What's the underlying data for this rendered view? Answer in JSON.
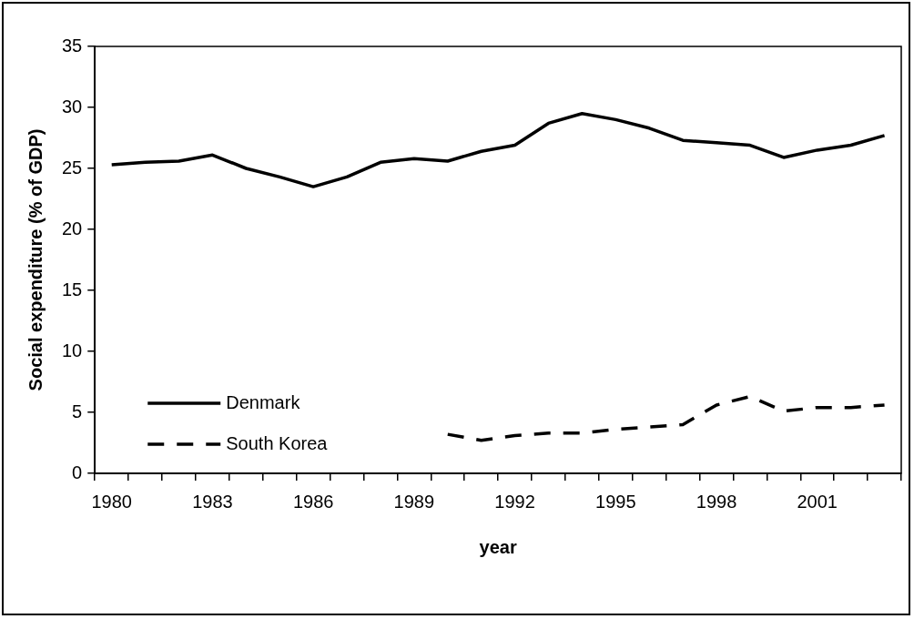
{
  "chart_data": {
    "type": "line",
    "xlabel": "year",
    "ylabel": "Social expenditure (% of GDP)",
    "categories": [
      "1980",
      null,
      null,
      "1983",
      null,
      null,
      "1986",
      null,
      null,
      "1989",
      null,
      null,
      "1992",
      null,
      null,
      "1995",
      null,
      null,
      "1998",
      null,
      null,
      "2001",
      null,
      null
    ],
    "series": [
      {
        "name": "Denmark",
        "color": "#000000",
        "line_style": "solid",
        "values": [
          25.3,
          25.5,
          25.6,
          26.1,
          25.0,
          24.3,
          23.5,
          24.3,
          25.5,
          25.8,
          25.6,
          26.4,
          26.9,
          28.7,
          29.5,
          29.0,
          28.3,
          27.3,
          27.1,
          26.9,
          25.9,
          26.5,
          26.9,
          27.7
        ]
      },
      {
        "name": "South Korea",
        "color": "#000000",
        "line_style": "dashed",
        "values": [
          null,
          null,
          null,
          null,
          null,
          null,
          null,
          null,
          null,
          null,
          3.2,
          2.7,
          3.1,
          3.3,
          3.3,
          3.6,
          3.8,
          4.0,
          5.6,
          6.3,
          5.1,
          5.4,
          5.4,
          5.6
        ]
      }
    ],
    "ylim": [
      0,
      35
    ],
    "yticks": [
      0,
      5,
      10,
      15,
      20,
      25,
      30,
      35
    ],
    "grid": false,
    "legend": "bottom left",
    "marker": "none"
  }
}
